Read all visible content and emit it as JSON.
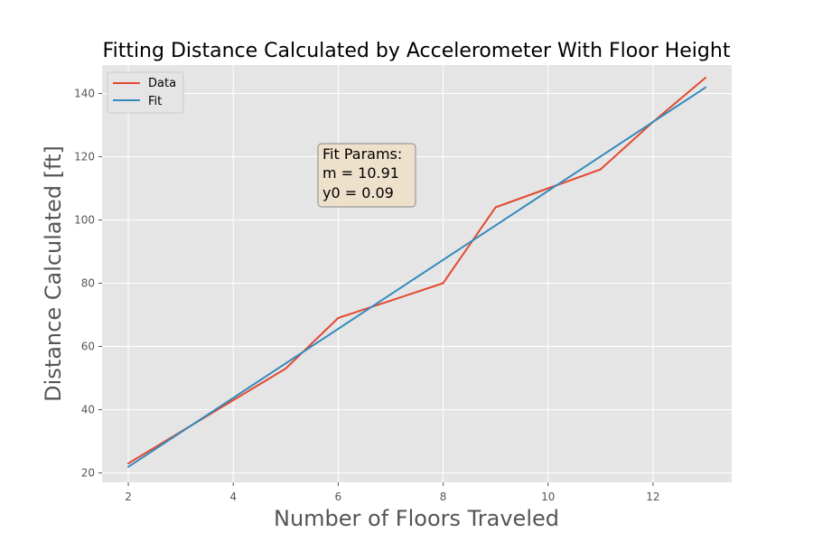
{
  "chart_data": {
    "type": "line",
    "title": "Fitting Distance Calculated by Accelerometer With Floor Height",
    "xlabel": "Number of Floors Traveled",
    "ylabel": "Distance Calculated [ft]",
    "xlim": [
      1.5,
      13.5
    ],
    "ylim": [
      17,
      149
    ],
    "xticks": [
      2,
      4,
      6,
      8,
      10,
      12
    ],
    "yticks": [
      20,
      40,
      60,
      80,
      100,
      120,
      140
    ],
    "grid": true,
    "legend_position": "top-left",
    "series": [
      {
        "name": "Data",
        "color": "#E24A33",
        "x": [
          2,
          3,
          4,
          5,
          6,
          7,
          8,
          9,
          10,
          11,
          12,
          13
        ],
        "y": [
          23,
          33,
          43,
          53,
          69,
          74.5,
          80,
          104,
          110,
          116,
          131,
          145
        ]
      },
      {
        "name": "Fit",
        "color": "#348ABD",
        "x": [
          2,
          13
        ],
        "y": [
          21.91,
          141.92
        ]
      }
    ],
    "annotation": {
      "lines": [
        "Fit Params:",
        "m = 10.91",
        "y0 = 0.09"
      ],
      "x": 5.7,
      "y": 122
    }
  }
}
